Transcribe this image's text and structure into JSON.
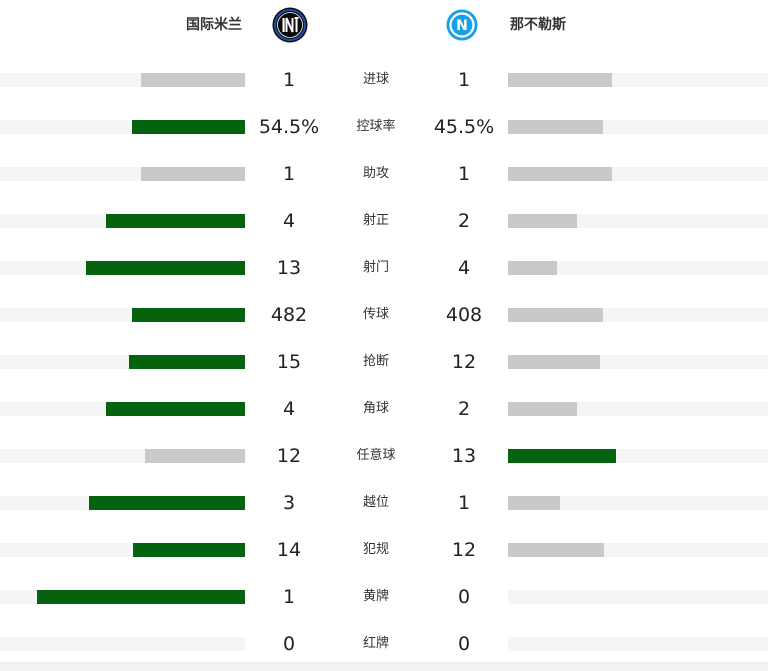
{
  "home": {
    "name": "国际米兰",
    "logo_icon": "inter-milan-crest-icon"
  },
  "away": {
    "name": "那不勒斯",
    "logo_icon": "napoli-crest-icon",
    "logo_letter": "N"
  },
  "colors": {
    "winner_bar": "#05620f",
    "loser_bar": "#c9c9c9",
    "track": "#f5f5f5"
  },
  "stats": [
    {
      "label": "进球",
      "home": "1",
      "away": "1",
      "home_share": 0.5,
      "away_share": 0.5,
      "home_win": false,
      "away_win": false
    },
    {
      "label": "控球率",
      "home": "54.5%",
      "away": "45.5%",
      "home_share": 0.545,
      "away_share": 0.455,
      "home_win": true,
      "away_win": false
    },
    {
      "label": "助攻",
      "home": "1",
      "away": "1",
      "home_share": 0.5,
      "away_share": 0.5,
      "home_win": false,
      "away_win": false
    },
    {
      "label": "射正",
      "home": "4",
      "away": "2",
      "home_share": 0.667,
      "away_share": 0.333,
      "home_win": true,
      "away_win": false
    },
    {
      "label": "射门",
      "home": "13",
      "away": "4",
      "home_share": 0.765,
      "away_share": 0.235,
      "home_win": true,
      "away_win": false
    },
    {
      "label": "传球",
      "home": "482",
      "away": "408",
      "home_share": 0.542,
      "away_share": 0.458,
      "home_win": true,
      "away_win": false
    },
    {
      "label": "抢断",
      "home": "15",
      "away": "12",
      "home_share": 0.556,
      "away_share": 0.444,
      "home_win": true,
      "away_win": false
    },
    {
      "label": "角球",
      "home": "4",
      "away": "2",
      "home_share": 0.667,
      "away_share": 0.333,
      "home_win": true,
      "away_win": false
    },
    {
      "label": "任意球",
      "home": "12",
      "away": "13",
      "home_share": 0.48,
      "away_share": 0.52,
      "home_win": false,
      "away_win": true
    },
    {
      "label": "越位",
      "home": "3",
      "away": "1",
      "home_share": 0.75,
      "away_share": 0.25,
      "home_win": true,
      "away_win": false
    },
    {
      "label": "犯规",
      "home": "14",
      "away": "12",
      "home_share": 0.538,
      "away_share": 0.462,
      "home_win": true,
      "away_win": false
    },
    {
      "label": "黄牌",
      "home": "1",
      "away": "0",
      "home_share": 1.0,
      "away_share": 0.0,
      "home_win": true,
      "away_win": false
    },
    {
      "label": "红牌",
      "home": "0",
      "away": "0",
      "home_share": 0.0,
      "away_share": 0.0,
      "home_win": false,
      "away_win": false
    }
  ]
}
